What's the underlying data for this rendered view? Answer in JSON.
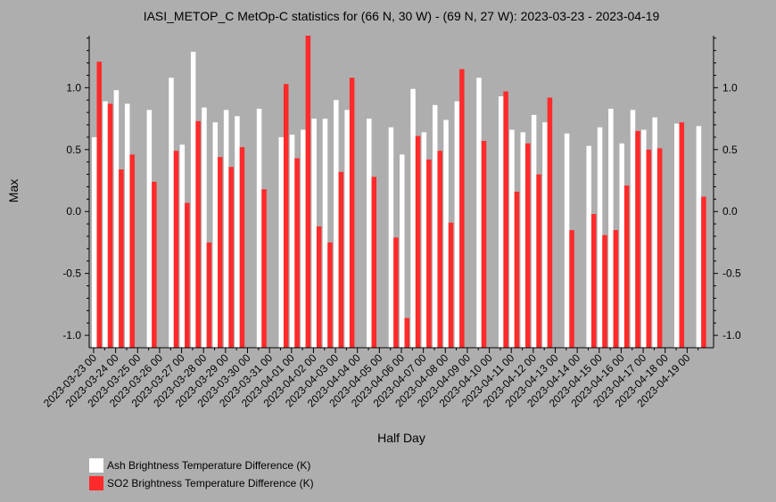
{
  "chart_data": {
    "type": "bar",
    "title": "IASI_METOP_C MetOp-C statistics for (66 N, 30 W) - (69 N, 27 W): 2023-03-23 - 2023-04-19",
    "xlabel": "Half Day",
    "ylabel": "Max",
    "ylim": [
      -1.1,
      1.42
    ],
    "yticks": [
      "1.0",
      "0.5",
      "0.0",
      "-0.5",
      "-1.0"
    ],
    "ytick_values": [
      1.0,
      0.5,
      0.0,
      -0.5,
      -1.0
    ],
    "categories": [
      "2023-03-23 00",
      "2023-03-23 12",
      "2023-03-24 00",
      "2023-03-24 12",
      "2023-03-25 00",
      "2023-03-25 12",
      "2023-03-26 00",
      "2023-03-26 12",
      "2023-03-27 00",
      "2023-03-27 12",
      "2023-03-28 00",
      "2023-03-28 12",
      "2023-03-29 00",
      "2023-03-29 12",
      "2023-03-30 00",
      "2023-03-30 12",
      "2023-03-31 00",
      "2023-03-31 12",
      "2023-04-01 00",
      "2023-04-01 12",
      "2023-04-02 00",
      "2023-04-02 12",
      "2023-04-03 00",
      "2023-04-03 12",
      "2023-04-04 00",
      "2023-04-04 12",
      "2023-04-05 00",
      "2023-04-05 12",
      "2023-04-06 00",
      "2023-04-06 12",
      "2023-04-07 00",
      "2023-04-07 12",
      "2023-04-08 00",
      "2023-04-08 12",
      "2023-04-09 00",
      "2023-04-09 12",
      "2023-04-10 00",
      "2023-04-10 12",
      "2023-04-11 00",
      "2023-04-11 12",
      "2023-04-12 00",
      "2023-04-12 12",
      "2023-04-13 00",
      "2023-04-13 12",
      "2023-04-14 00",
      "2023-04-14 12",
      "2023-04-15 00",
      "2023-04-15 12",
      "2023-04-16 00",
      "2023-04-16 12",
      "2023-04-17 00",
      "2023-04-17 12",
      "2023-04-18 00",
      "2023-04-18 12",
      "2023-04-19 00",
      "2023-04-19 12"
    ],
    "xtick_labels": [
      "2023-03-23 00",
      "2023-03-24 00",
      "2023-03-25 00",
      "2023-03-26 00",
      "2023-03-27 00",
      "2023-03-28 00",
      "2023-03-29 00",
      "2023-03-30 00",
      "2023-03-31 00",
      "2023-04-01 00",
      "2023-04-02 00",
      "2023-04-03 00",
      "2023-04-04 00",
      "2023-04-05 00",
      "2023-04-06 00",
      "2023-04-07 00",
      "2023-04-08 00",
      "2023-04-09 00",
      "2023-04-10 00",
      "2023-04-11 00",
      "2023-04-12 00",
      "2023-04-13 00",
      "2023-04-14 00",
      "2023-04-15 00",
      "2023-04-16 00",
      "2023-04-17 00",
      "2023-04-18 00",
      "2023-04-19 00"
    ],
    "series": [
      {
        "name": "Ash Brightness Temperature Difference (K)",
        "color": "#ffffff",
        "values": [
          0.6,
          0.89,
          0.98,
          0.87,
          null,
          0.82,
          null,
          1.08,
          0.54,
          1.29,
          0.84,
          0.72,
          0.82,
          0.77,
          null,
          0.83,
          null,
          0.6,
          0.62,
          0.66,
          0.75,
          0.75,
          0.9,
          0.82,
          null,
          0.75,
          null,
          0.68,
          0.46,
          0.99,
          0.64,
          0.86,
          0.74,
          0.89,
          null,
          1.08,
          null,
          0.93,
          0.66,
          0.64,
          0.78,
          0.72,
          null,
          0.63,
          null,
          0.53,
          0.68,
          0.83,
          0.55,
          0.82,
          0.66,
          0.76,
          null,
          0.71,
          null,
          0.69
        ]
      },
      {
        "name": "SO2 Brightness Temperature Difference (K)",
        "color": "#ff2a2a",
        "values": [
          1.21,
          0.87,
          0.34,
          0.46,
          null,
          0.24,
          null,
          0.49,
          0.07,
          0.73,
          -0.25,
          0.44,
          0.36,
          0.52,
          null,
          0.18,
          null,
          1.03,
          0.43,
          1.42,
          -0.12,
          -0.25,
          0.32,
          1.08,
          null,
          0.28,
          null,
          -0.21,
          -0.86,
          0.61,
          0.42,
          0.49,
          -0.09,
          1.15,
          null,
          0.57,
          null,
          0.97,
          0.16,
          0.55,
          0.3,
          0.92,
          null,
          -0.15,
          null,
          -0.02,
          -0.19,
          -0.15,
          0.21,
          0.65,
          0.5,
          0.51,
          null,
          0.72,
          null,
          0.12
        ]
      }
    ],
    "legend_position": "bottom-left",
    "grid": false
  }
}
